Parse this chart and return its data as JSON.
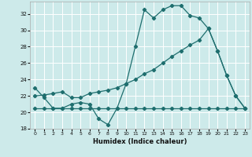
{
  "xlabel": "Humidex (Indice chaleur)",
  "bg_color": "#cdeaea",
  "grid_color": "#ffffff",
  "line_color": "#1e6e6e",
  "xlim": [
    -0.5,
    23.5
  ],
  "ylim": [
    18,
    33.5
  ],
  "yticks": [
    18,
    20,
    22,
    24,
    26,
    28,
    30,
    32
  ],
  "xticks": [
    0,
    1,
    2,
    3,
    4,
    5,
    6,
    7,
    8,
    9,
    10,
    11,
    12,
    13,
    14,
    15,
    16,
    17,
    18,
    19,
    20,
    21,
    22,
    23
  ],
  "line1_x": [
    0,
    1,
    2,
    3,
    4,
    5,
    6,
    7,
    8,
    9,
    10,
    11,
    12,
    13,
    14,
    15,
    16,
    17,
    18,
    19,
    20,
    21,
    22,
    23
  ],
  "line1_y": [
    23.0,
    21.8,
    20.5,
    20.5,
    21.0,
    21.2,
    21.0,
    19.2,
    18.5,
    20.5,
    23.5,
    28.0,
    32.5,
    31.5,
    32.5,
    33.0,
    33.0,
    31.8,
    31.5,
    30.2,
    27.5,
    24.5,
    22.0,
    20.5
  ],
  "line2_x": [
    0,
    1,
    2,
    3,
    4,
    5,
    6,
    7,
    8,
    9,
    10,
    11,
    12,
    13,
    14,
    15,
    16,
    17,
    18,
    19,
    20,
    21,
    22,
    23
  ],
  "line2_y": [
    20.5,
    20.5,
    20.5,
    20.5,
    20.5,
    20.5,
    20.5,
    20.5,
    20.5,
    20.5,
    20.5,
    20.5,
    20.5,
    20.5,
    20.5,
    20.5,
    20.5,
    20.5,
    20.5,
    20.5,
    20.5,
    20.5,
    20.5,
    20.5
  ],
  "line3_x": [
    0,
    1,
    2,
    3,
    4,
    5,
    6,
    7,
    8,
    9,
    10,
    11,
    12,
    13,
    14,
    15,
    16,
    17,
    18,
    19,
    20,
    21,
    22,
    23
  ],
  "line3_y": [
    22.0,
    22.1,
    22.3,
    22.5,
    21.8,
    21.8,
    22.3,
    22.5,
    22.7,
    23.0,
    23.5,
    24.0,
    24.7,
    25.2,
    26.0,
    26.8,
    27.5,
    28.2,
    28.8,
    30.2,
    27.5,
    24.5,
    22.0,
    20.5
  ]
}
